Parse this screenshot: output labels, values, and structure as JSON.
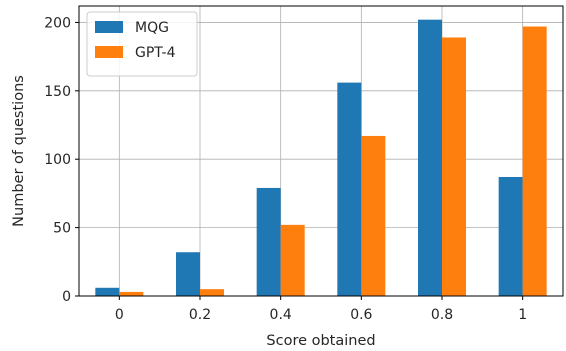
{
  "chart_data": {
    "type": "bar",
    "categories": [
      "0",
      "0.2",
      "0.4",
      "0.6",
      "0.8",
      "1"
    ],
    "series": [
      {
        "name": "MQG",
        "color": "#1f77b4",
        "values": [
          6,
          32,
          79,
          156,
          202,
          87
        ]
      },
      {
        "name": "GPT-4",
        "color": "#ff7f0e",
        "values": [
          3,
          5,
          52,
          117,
          189,
          197
        ]
      }
    ],
    "xlabel": "Score obtained",
    "ylabel": "Number of questions",
    "ylim": [
      0,
      212
    ],
    "yticks": [
      0,
      50,
      100,
      150,
      200
    ],
    "grid": true,
    "legend": "top-left"
  }
}
